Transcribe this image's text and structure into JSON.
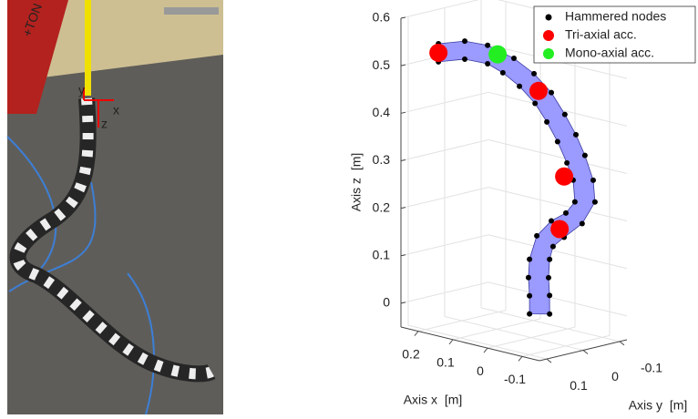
{
  "photo": {
    "brand": "+TON",
    "frame_labels": [
      "y",
      "x",
      "z"
    ]
  },
  "chart_data": {
    "type": "scatter3d",
    "xlabel": "Axis x  [m]",
    "ylabel": "Axis y  [m]",
    "zlabel": "Axis z  [m]",
    "xlim": [
      -0.15,
      0.25
    ],
    "ylim": [
      -0.12,
      0.12
    ],
    "zlim": [
      -0.05,
      0.6
    ],
    "xticks": [
      -0.1,
      0,
      0.1,
      0.2
    ],
    "yticks": [
      -0.1,
      0,
      0.1
    ],
    "zticks": [
      0,
      0.1,
      0.2,
      0.3,
      0.4,
      0.5,
      0.6
    ],
    "grid": true,
    "legend": "upper right",
    "surface_color": "#9a9aff",
    "series": [
      {
        "name": "Hammered nodes",
        "color": "#000000",
        "x": [
          0.268,
          0.268,
          0.192,
          0.192,
          0.126,
          0.126,
          0.05,
          0.082,
          -0.008,
          0.034,
          -0.058,
          -0.011,
          -0.097,
          -0.045,
          -0.129,
          -0.076,
          -0.155,
          -0.103,
          -0.179,
          -0.121,
          -0.184,
          -0.126,
          -0.147,
          -0.1,
          -0.095,
          -0.058,
          -0.063,
          -0.016,
          -0.053,
          0.005,
          -0.05,
          0.008,
          -0.053,
          0.005,
          -0.053,
          0.005
        ],
        "y": [
          0,
          0,
          0,
          0,
          0,
          0,
          0,
          0,
          0,
          0,
          0,
          0,
          0,
          0,
          0,
          0,
          0,
          0,
          0,
          0,
          0,
          0,
          0,
          0,
          0,
          0,
          0,
          0,
          0,
          0,
          0,
          0,
          0,
          0,
          0,
          0
        ],
        "z": [
          0.521,
          0.483,
          0.54,
          0.502,
          0.543,
          0.504,
          0.529,
          0.493,
          0.507,
          0.473,
          0.476,
          0.445,
          0.437,
          0.412,
          0.4,
          0.376,
          0.361,
          0.336,
          0.313,
          0.303,
          0.268,
          0.258,
          0.216,
          0.23,
          0.178,
          0.206,
          0.153,
          0.167,
          0.124,
          0.114,
          0.085,
          0.075,
          0.048,
          0.037,
          0.009,
          -0.001
        ]
      },
      {
        "name": "Tri-axial acc.",
        "color": "#ff0000",
        "x": [
          0.268,
          -0.021,
          -0.095,
          -0.082
        ],
        "y": [
          0,
          0,
          0,
          0
        ],
        "z": [
          0.502,
          0.473,
          0.306,
          0.193
        ]
      },
      {
        "name": "Mono-axial acc.",
        "color": "#22ee22",
        "x": [
          0.097
        ],
        "y": [
          0
        ],
        "z": [
          0.529
        ]
      }
    ]
  }
}
